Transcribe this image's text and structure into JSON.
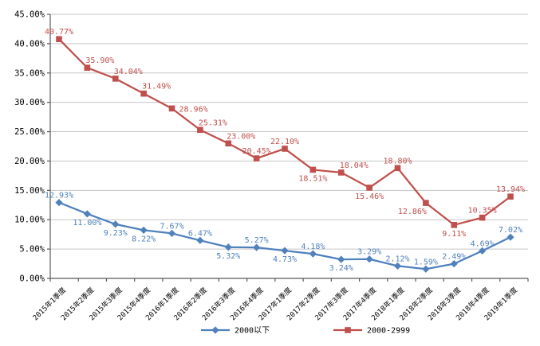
{
  "chart_data": {
    "type": "line",
    "title": "",
    "categories": [
      "2015年1季度",
      "2015年2季度",
      "2015年3季度",
      "2015年4季度",
      "2016年1季度",
      "2016年2季度",
      "2016年3季度",
      "2016年4季度",
      "2017年1季度",
      "2017年2季度",
      "2017年3季度",
      "2017年4季度",
      "2018年1季度",
      "2018年2季度",
      "2018年3季度",
      "2018年4季度",
      "2019年1季度"
    ],
    "series": [
      {
        "name": "2000以下",
        "color": "#4f81bd",
        "marker": "diamond",
        "values": [
          12.93,
          11.0,
          9.23,
          8.22,
          7.67,
          6.47,
          5.32,
          5.27,
          4.73,
          4.18,
          3.24,
          3.29,
          2.12,
          1.59,
          2.49,
          4.69,
          7.02
        ],
        "labels": [
          "12.93%",
          "11.00%",
          "9.23%",
          "8.22%",
          "7.67%",
          "6.47%",
          "5.32%",
          "5.27%",
          "4.73%",
          "4.18%",
          "3.24%",
          "3.29%",
          "2.12%",
          "1.59%",
          "2.49%",
          "4.69%",
          "7.02%"
        ],
        "label_pos": [
          "above",
          "below",
          "below",
          "below",
          "above",
          "above",
          "below",
          "above",
          "below",
          "above",
          "below",
          "above",
          "above",
          "above",
          "above",
          "above",
          "above"
        ]
      },
      {
        "name": "2000-2999",
        "color": "#c0504d",
        "marker": "square",
        "values": [
          40.77,
          35.9,
          34.04,
          31.49,
          28.96,
          25.31,
          23.0,
          20.45,
          22.1,
          18.51,
          18.04,
          15.46,
          18.8,
          12.86,
          9.11,
          10.35,
          13.94
        ],
        "labels": [
          "40.77%",
          "35.90%",
          "34.04%",
          "31.49%",
          "28.96%",
          "25.31%",
          "23.00%",
          "20.45%",
          "22.10%",
          "18.51%",
          "18.04%",
          "15.46%",
          "18.80%",
          "12.86%",
          "9.11%",
          "10.35%",
          "13.94%"
        ],
        "label_pos": [
          "above",
          "above-right",
          "above-right",
          "above-right",
          "right",
          "above-right",
          "above-right",
          "above",
          "above",
          "below",
          "above-right",
          "below",
          "above",
          "below-left",
          "below",
          "above",
          "above"
        ]
      }
    ],
    "y_axis": {
      "min": 0,
      "max": 45,
      "step": 5,
      "tick_labels": [
        "0.00%",
        "5.00%",
        "10.00%",
        "15.00%",
        "20.00%",
        "25.00%",
        "30.00%",
        "35.00%",
        "40.00%",
        "45.00%"
      ]
    },
    "x_axis": {
      "label_rotation": -45
    },
    "grid": true,
    "legend_position": "bottom",
    "colors": {
      "gridline": "#c6c6c6",
      "axis": "#595959",
      "background": "#ffffff",
      "tick_text": "#000000",
      "legend_text": "#000000"
    }
  }
}
